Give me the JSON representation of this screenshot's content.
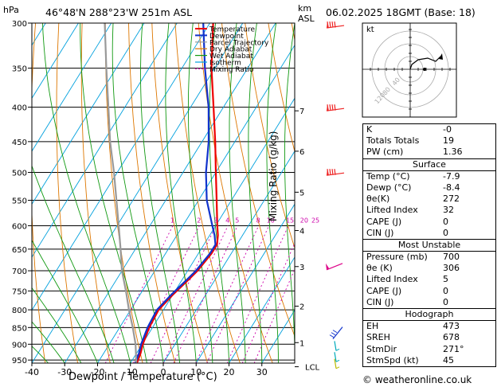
{
  "header": {
    "hpa_label": "hPa",
    "location": "46°48'N  288°23'W  251m  ASL",
    "km_label": "km",
    "asl_label": "ASL",
    "datetime": "06.02.2025  18GMT  (Base: 18)"
  },
  "chart_data": {
    "type": "skew-t",
    "title": "46°48'N  288°23'W  251m  ASL",
    "xlabel": "Dewpoint / Temperature (°C)",
    "ylabel": "hPa",
    "right_axis_label": "Mixing Ratio (g/kg)",
    "xlim": [
      -40,
      40
    ],
    "ylim": [
      960,
      300
    ],
    "x_ticks": [
      -40,
      -30,
      -20,
      -10,
      0,
      10,
      20,
      30
    ],
    "pressure_ticks": [
      300,
      350,
      400,
      450,
      500,
      550,
      600,
      650,
      700,
      750,
      800,
      850,
      900,
      950
    ],
    "km_ticks": [
      {
        "p": 405,
        "label": "7"
      },
      {
        "p": 465,
        "label": "6"
      },
      {
        "p": 535,
        "label": "5"
      },
      {
        "p": 610,
        "label": "4"
      },
      {
        "p": 690,
        "label": "3"
      },
      {
        "p": 790,
        "label": "2"
      },
      {
        "p": 895,
        "label": "1"
      },
      {
        "p": 972,
        "label": "LCL"
      }
    ],
    "mixing_ratio_labels": [
      "1",
      "2",
      "3",
      "4",
      "5",
      "8",
      "10",
      "15",
      "20",
      "25"
    ],
    "mixing_ratio_values": [
      1,
      2,
      3,
      4,
      5,
      8,
      10,
      15,
      20,
      25
    ],
    "legend": [
      {
        "name": "Temperature",
        "color": "#ee0000"
      },
      {
        "name": "Dewpoint",
        "color": "#1133cc"
      },
      {
        "name": "Parcel Trajectory",
        "color": "#999999"
      },
      {
        "name": "Dry Adiabat",
        "color": "#dd7700"
      },
      {
        "name": "Wet Adiabat",
        "color": "#119911"
      },
      {
        "name": "Isotherm",
        "color": "#00a0dd"
      },
      {
        "name": "Mixing Ratio",
        "color": "#cc00aa"
      }
    ],
    "series": [
      {
        "name": "Temperature",
        "points": [
          [
            965,
            -7.9
          ],
          [
            930,
            -8.7
          ],
          [
            900,
            -9.8
          ],
          [
            850,
            -11
          ],
          [
            800,
            -11.5
          ],
          [
            760,
            -10
          ],
          [
            720,
            -8
          ],
          [
            700,
            -7
          ],
          [
            660,
            -6
          ],
          [
            640,
            -6
          ],
          [
            620,
            -7.5
          ],
          [
            600,
            -9.5
          ],
          [
            550,
            -14.5
          ],
          [
            500,
            -20
          ],
          [
            450,
            -26
          ],
          [
            400,
            -33
          ],
          [
            350,
            -41
          ],
          [
            300,
            -49
          ]
        ]
      },
      {
        "name": "Dewpoint",
        "points": [
          [
            965,
            -8.4
          ],
          [
            930,
            -9.2
          ],
          [
            900,
            -10.3
          ],
          [
            850,
            -11.5
          ],
          [
            800,
            -12
          ],
          [
            760,
            -10.5
          ],
          [
            720,
            -8.5
          ],
          [
            700,
            -7.5
          ],
          [
            660,
            -6.5
          ],
          [
            640,
            -6.5
          ],
          [
            620,
            -8.5
          ],
          [
            600,
            -11
          ],
          [
            550,
            -17.5
          ],
          [
            500,
            -23
          ],
          [
            450,
            -28
          ],
          [
            400,
            -34.5
          ],
          [
            350,
            -43
          ],
          [
            300,
            -52
          ]
        ]
      },
      {
        "name": "Parcel Trajectory",
        "points": [
          [
            965,
            -7.9
          ],
          [
            900,
            -12
          ],
          [
            850,
            -16
          ],
          [
            800,
            -20.5
          ],
          [
            750,
            -25
          ],
          [
            700,
            -30
          ],
          [
            650,
            -34.5
          ],
          [
            600,
            -39.5
          ],
          [
            550,
            -45
          ],
          [
            500,
            -51
          ],
          [
            450,
            -58
          ],
          [
            400,
            -65
          ],
          [
            350,
            -73
          ],
          [
            300,
            -82
          ]
        ]
      }
    ],
    "wind_colors": [
      "#ee2222",
      "#ee2222",
      "#ee2222",
      "#dd0088",
      "#1133cc",
      "#00aabb",
      "#00aabb",
      "#bbbb00"
    ]
  },
  "hodograph": {
    "label": "kt",
    "ring_labels": [
      "120",
      "80",
      "40"
    ]
  },
  "indices": {
    "rows": [
      {
        "label": "K",
        "value": "-0"
      },
      {
        "label": "Totals Totals",
        "value": "19"
      },
      {
        "label": "PW (cm)",
        "value": "1.36"
      }
    ],
    "surface": {
      "title": "Surface",
      "rows": [
        {
          "label": "Temp (°C)",
          "value": "-7.9"
        },
        {
          "label": "Dewp (°C)",
          "value": "-8.4"
        },
        {
          "label": "θe(K)",
          "value": "272"
        },
        {
          "label": "Lifted Index",
          "value": "32"
        },
        {
          "label": "CAPE (J)",
          "value": "0"
        },
        {
          "label": "CIN (J)",
          "value": "0"
        }
      ]
    },
    "most_unstable": {
      "title": "Most Unstable",
      "rows": [
        {
          "label": "Pressure (mb)",
          "value": "700"
        },
        {
          "label": "θe (K)",
          "value": "306"
        },
        {
          "label": "Lifted Index",
          "value": "5"
        },
        {
          "label": "CAPE (J)",
          "value": "0"
        },
        {
          "label": "CIN (J)",
          "value": "0"
        }
      ]
    },
    "hodograph": {
      "title": "Hodograph",
      "rows": [
        {
          "label": "EH",
          "value": "473"
        },
        {
          "label": "SREH",
          "value": "678"
        },
        {
          "label": "StmDir",
          "value": "271°"
        },
        {
          "label": "StmSpd (kt)",
          "value": "45"
        }
      ]
    }
  },
  "footer": {
    "copyright": "© weatheronline.co.uk"
  }
}
